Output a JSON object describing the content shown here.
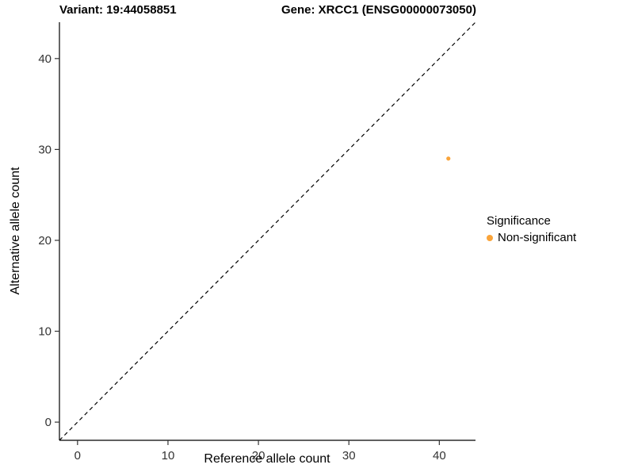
{
  "chart_data": {
    "type": "scatter",
    "title_left": "Variant: 19:44058851",
    "title_right": "Gene: XRCC1 (ENSG00000073050)",
    "xlabel": "Reference allele count",
    "ylabel": "Alternative allele count",
    "xlim": [
      -2,
      44
    ],
    "ylim": [
      -2,
      44
    ],
    "xticks": [
      0,
      10,
      20,
      30,
      40
    ],
    "yticks": [
      0,
      10,
      20,
      30,
      40
    ],
    "grid": false,
    "points": [
      {
        "x": 41,
        "y": 29,
        "series": "Non-significant",
        "color": "#FAA43A"
      }
    ],
    "identity_line": {
      "style": "dashed",
      "color": "#000000"
    },
    "legend": {
      "title": "Significance",
      "position": "right",
      "entries": [
        {
          "label": "Non-significant",
          "color": "#FAA43A"
        }
      ]
    }
  }
}
